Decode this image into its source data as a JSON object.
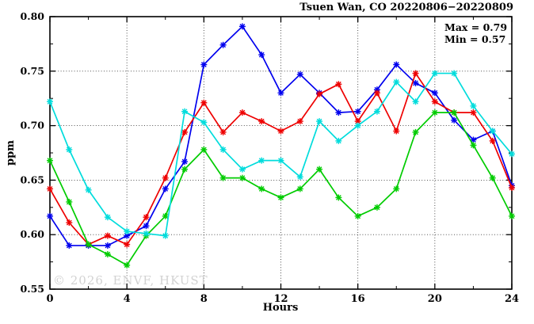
{
  "chart_data": {
    "type": "line",
    "title": "Tsuen Wan, CO 20220806−20220809",
    "xlabel": "Hours",
    "ylabel": "ppm",
    "xlim": [
      0,
      24
    ],
    "ylim": [
      0.55,
      0.8
    ],
    "x_ticks": [
      0,
      4,
      8,
      12,
      16,
      20,
      24
    ],
    "y_ticks": [
      0.55,
      0.6,
      0.65,
      0.7,
      0.75,
      0.8
    ],
    "x_minor_ticks": [
      2,
      6,
      10,
      14,
      18,
      22
    ],
    "y_minor_ticks": [
      0.575,
      0.625,
      0.675,
      0.725,
      0.775
    ],
    "grid": true,
    "legend_position": "none",
    "annotations": [
      "Max = 0.79",
      "Min = 0.57"
    ],
    "watermark": "© 2026, ENVF, HKUST",
    "x": [
      0,
      1,
      2,
      3,
      4,
      5,
      6,
      7,
      8,
      9,
      10,
      11,
      12,
      13,
      14,
      15,
      16,
      17,
      18,
      19,
      20,
      21,
      22,
      23,
      24
    ],
    "series": [
      {
        "name": "blue-line",
        "color": "#0000ee",
        "values": [
          0.617,
          0.59,
          0.59,
          0.59,
          0.599,
          0.608,
          0.642,
          0.667,
          0.756,
          0.774,
          0.791,
          0.765,
          0.73,
          0.747,
          0.73,
          0.712,
          0.713,
          0.733,
          0.756,
          0.739,
          0.73,
          0.705,
          0.687,
          0.695,
          0.645
        ]
      },
      {
        "name": "red-line",
        "color": "#ee0000",
        "values": [
          0.642,
          0.611,
          0.591,
          0.599,
          0.591,
          0.616,
          0.652,
          0.694,
          0.721,
          0.694,
          0.712,
          0.704,
          0.695,
          0.704,
          0.729,
          0.738,
          0.704,
          0.73,
          0.695,
          0.748,
          0.722,
          0.712,
          0.712,
          0.686,
          0.643
        ]
      },
      {
        "name": "green-line",
        "color": "#00cc00",
        "values": [
          0.668,
          0.63,
          0.591,
          0.582,
          0.572,
          0.599,
          0.617,
          0.66,
          0.678,
          0.652,
          0.652,
          0.642,
          0.634,
          0.642,
          0.66,
          0.634,
          0.617,
          0.625,
          0.642,
          0.694,
          0.712,
          0.712,
          0.682,
          0.652,
          0.617
        ]
      },
      {
        "name": "cyan-line",
        "color": "#00dcdc",
        "values": [
          0.722,
          0.678,
          0.641,
          0.616,
          0.603,
          0.601,
          0.599,
          0.713,
          0.703,
          0.678,
          0.66,
          0.668,
          0.668,
          0.653,
          0.704,
          0.686,
          0.7,
          0.713,
          0.74,
          0.722,
          0.748,
          0.748,
          0.718,
          0.695,
          0.674
        ]
      }
    ]
  }
}
